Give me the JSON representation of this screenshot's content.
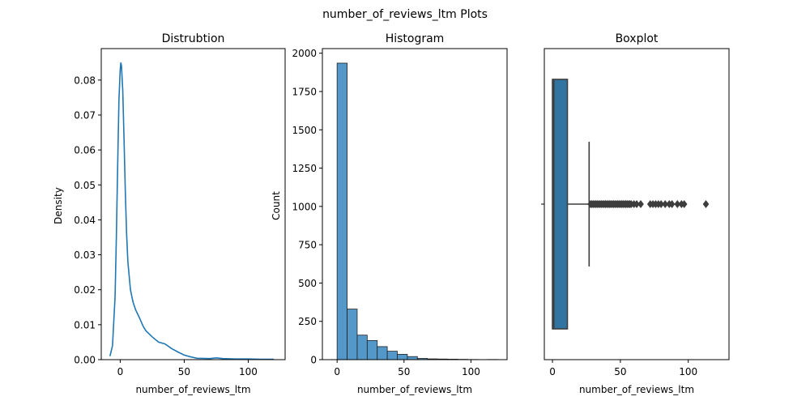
{
  "figure": {
    "suptitle": "number_of_reviews_ltm Plots"
  },
  "chart_data": [
    {
      "type": "line",
      "title": "Distrubtion",
      "xlabel": "number_of_reviews_ltm",
      "ylabel": "Density",
      "xlim": [
        -14.8,
        128.8
      ],
      "ylim": [
        0,
        0.089
      ],
      "xticks": [
        0,
        50,
        100
      ],
      "yticks": [
        0.0,
        0.01,
        0.02,
        0.03,
        0.04,
        0.05,
        0.06,
        0.07,
        0.08
      ],
      "ytick_labels": [
        "0.00",
        "0.01",
        "0.02",
        "0.03",
        "0.04",
        "0.05",
        "0.06",
        "0.07",
        "0.08"
      ],
      "color": "#1f77b4",
      "x": [
        -8,
        -6,
        -4,
        -3,
        -2,
        -1,
        0,
        0.5,
        1,
        2,
        3,
        4,
        5,
        6,
        8,
        10,
        12,
        15,
        18,
        20,
        25,
        30,
        35,
        40,
        45,
        50,
        55,
        60,
        70,
        75,
        80,
        90,
        100,
        110,
        120
      ],
      "y": [
        0.001,
        0.004,
        0.018,
        0.035,
        0.055,
        0.074,
        0.083,
        0.085,
        0.084,
        0.077,
        0.063,
        0.048,
        0.036,
        0.028,
        0.02,
        0.0165,
        0.0143,
        0.012,
        0.0095,
        0.0083,
        0.0065,
        0.005,
        0.0045,
        0.0032,
        0.0022,
        0.0013,
        0.0008,
        0.0004,
        0.0003,
        0.0005,
        0.0003,
        0.0002,
        0.0002,
        0.0001,
        0.0001
      ]
    },
    {
      "type": "bar",
      "title": "Histogram",
      "xlabel": "number_of_reviews_ltm",
      "ylabel": "Count",
      "xlim": [
        -11,
        127
      ],
      "ylim": [
        0,
        2030
      ],
      "xticks": [
        0,
        50,
        100
      ],
      "yticks": [
        0,
        250,
        500,
        750,
        1000,
        1250,
        1500,
        1750,
        2000
      ],
      "bin_width": 7.5,
      "bin_starts": [
        0,
        7.5,
        15,
        22.5,
        30,
        37.5,
        45,
        52.5,
        60,
        67.5,
        75,
        82.5,
        90,
        97.5,
        105,
        112.5
      ],
      "values": [
        1935,
        330,
        160,
        125,
        85,
        55,
        35,
        20,
        8,
        5,
        4,
        3,
        2,
        1,
        0,
        1
      ],
      "color": "#4a92c6"
    },
    {
      "type": "box",
      "title": "Boxplot",
      "xlabel": "number_of_reviews_ltm",
      "xlim": [
        -6,
        130
      ],
      "xticks": [
        0,
        50,
        100
      ],
      "min": 0,
      "q1": 0,
      "median": 1,
      "q3": 11,
      "whisker_high": 27,
      "color": "#3274a1",
      "outliers": [
        28,
        29,
        30,
        31,
        32,
        33,
        34,
        35,
        36,
        37,
        38,
        39,
        40,
        41,
        42,
        43,
        44,
        45,
        46,
        47,
        48,
        49,
        50,
        51,
        52,
        53,
        54,
        55,
        56,
        57,
        58,
        60,
        62,
        65,
        72,
        74,
        76,
        78,
        80,
        83,
        86,
        88,
        92,
        95,
        97,
        113
      ]
    }
  ]
}
